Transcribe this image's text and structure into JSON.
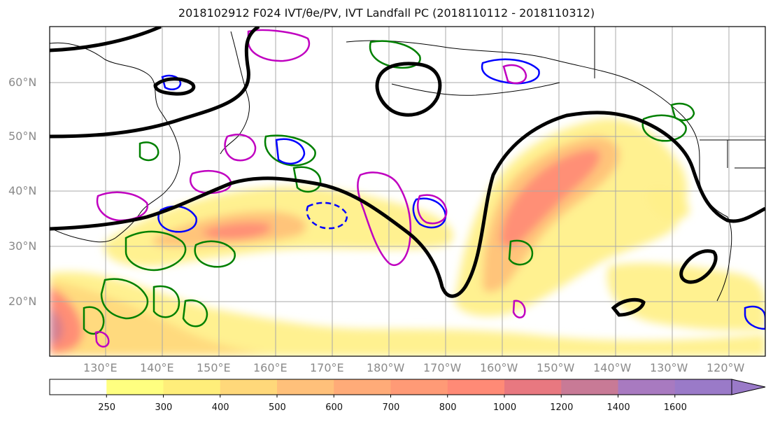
{
  "chart_data": {
    "type": "heatmap",
    "title": "2018102912 F024 IVT/θe/PV, IVT Landfall PC (2018110112 - 2018110312)",
    "map": {
      "lat_ticks": [
        "20°N",
        "30°N",
        "40°N",
        "50°N",
        "60°N"
      ],
      "lon_ticks": [
        "130°E",
        "140°E",
        "150°E",
        "160°E",
        "170°E",
        "180°W",
        "170°W",
        "160°W",
        "150°W",
        "140°W",
        "130°W",
        "120°W"
      ],
      "lat_range": [
        10,
        70
      ],
      "lon_range_deg_east": [
        120,
        247
      ],
      "grid": true
    },
    "colorbar": {
      "boundaries": [
        250,
        300,
        400,
        500,
        600,
        700,
        800,
        1000,
        1200,
        1400,
        1600
      ],
      "colors": [
        "#ffffff",
        "#ffff80",
        "#ffee7a",
        "#ffd87a",
        "#ffc07a",
        "#ffab78",
        "#ff9a76",
        "#ff8a76",
        "#e87880",
        "#c87a96",
        "#a87ac0",
        "#9a7ac8"
      ],
      "extend": "max"
    },
    "series": [
      {
        "kind": "black-contour",
        "color": "#000000"
      },
      {
        "kind": "green-contour",
        "color": "#008000"
      },
      {
        "kind": "blue-contour",
        "color": "#0000ff"
      },
      {
        "kind": "magenta-contour",
        "color": "#c000c0"
      }
    ]
  }
}
